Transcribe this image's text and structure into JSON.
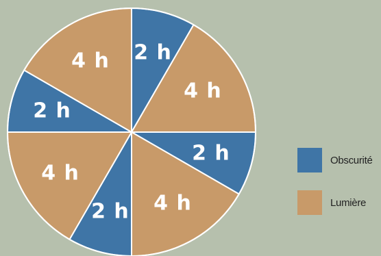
{
  "chart_data": {
    "type": "pie",
    "slices": [
      {
        "label": "2 h",
        "value": 2,
        "category": "Obscurité"
      },
      {
        "label": "4 h",
        "value": 4,
        "category": "Lumière"
      },
      {
        "label": "2 h",
        "value": 2,
        "category": "Obscurité"
      },
      {
        "label": "4 h",
        "value": 4,
        "category": "Lumière"
      },
      {
        "label": "2 h",
        "value": 2,
        "category": "Obscurité"
      },
      {
        "label": "4 h",
        "value": 4,
        "category": "Lumière"
      },
      {
        "label": "2 h",
        "value": 2,
        "category": "Obscurité"
      },
      {
        "label": "4 h",
        "value": 4,
        "category": "Lumière"
      }
    ],
    "start": "top, clockwise",
    "colors": {
      "Obscurité": "#3f75a6",
      "Lumière": "#c89a69"
    },
    "legend": [
      {
        "label": "Obscurité",
        "color": "#3f75a6"
      },
      {
        "label": "Lumière",
        "color": "#c89a69"
      }
    ],
    "legend_position": "right"
  }
}
